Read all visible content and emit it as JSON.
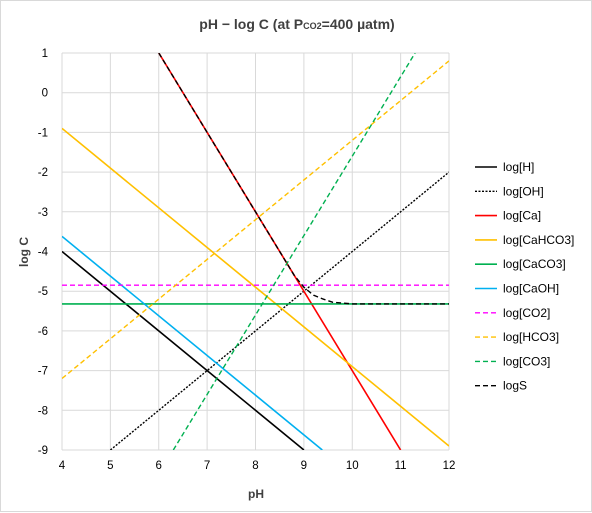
{
  "chart_data": {
    "type": "line",
    "title": {
      "main": "pH − log C (at P",
      "sub": "CO2",
      "tail": "=400 µatm)"
    },
    "xlabel": "pH",
    "ylabel": "log C",
    "xlim": [
      4,
      12
    ],
    "ylim": [
      -9,
      1
    ],
    "xticks": [
      4,
      5,
      6,
      7,
      8,
      9,
      10,
      11,
      12
    ],
    "yticks": [
      1,
      0,
      -1,
      -2,
      -3,
      -4,
      -5,
      -6,
      -7,
      -8,
      -9
    ],
    "grid": true,
    "legend_position": "right",
    "series": [
      {
        "name": "log[H]",
        "color": "#000000",
        "dash": "solid",
        "points": [
          [
            4,
            -4
          ],
          [
            9.0,
            -9
          ]
        ]
      },
      {
        "name": "log[OH]",
        "color": "#000000",
        "dash": "dotted",
        "points": [
          [
            5,
            -9
          ],
          [
            12,
            -2
          ]
        ]
      },
      {
        "name": "log[Ca]",
        "color": "#ff0000",
        "dash": "solid",
        "points": [
          [
            6,
            1
          ],
          [
            11.0,
            -9
          ]
        ]
      },
      {
        "name": "log[CaHCO3]",
        "color": "#ffc000",
        "dash": "solid",
        "points": [
          [
            4,
            -0.9
          ],
          [
            12,
            -8.9
          ]
        ]
      },
      {
        "name": "log[CaCO3]",
        "color": "#00b050",
        "dash": "solid",
        "points": [
          [
            4,
            -5.32
          ],
          [
            12,
            -5.32
          ]
        ]
      },
      {
        "name": "log[CaOH]",
        "color": "#00b0f0",
        "dash": "solid",
        "points": [
          [
            4,
            -3.62
          ],
          [
            9.38,
            -9
          ]
        ]
      },
      {
        "name": "log[CO2]",
        "color": "#ff00ff",
        "dash": "dashed",
        "points": [
          [
            4,
            -4.85
          ],
          [
            12,
            -4.85
          ]
        ]
      },
      {
        "name": "log[HCO3]",
        "color": "#ffc000",
        "dash": "dashed",
        "points": [
          [
            4,
            -7.2
          ],
          [
            12,
            0.8
          ]
        ]
      },
      {
        "name": "log[CO3]",
        "color": "#00b050",
        "dash": "dashed",
        "points": [
          [
            6.3,
            -9
          ],
          [
            11.3,
            1
          ]
        ]
      },
      {
        "name": "logS",
        "color": "#000000",
        "dash": "dashed",
        "points": [
          [
            6,
            1
          ],
          [
            7,
            -1
          ],
          [
            8,
            -3
          ],
          [
            8.5,
            -4
          ],
          [
            8.8,
            -4.6
          ],
          [
            9.0,
            -4.9
          ],
          [
            9.2,
            -5.1
          ],
          [
            9.4,
            -5.2
          ],
          [
            9.6,
            -5.28
          ],
          [
            10,
            -5.32
          ],
          [
            12,
            -5.32
          ]
        ]
      }
    ]
  }
}
